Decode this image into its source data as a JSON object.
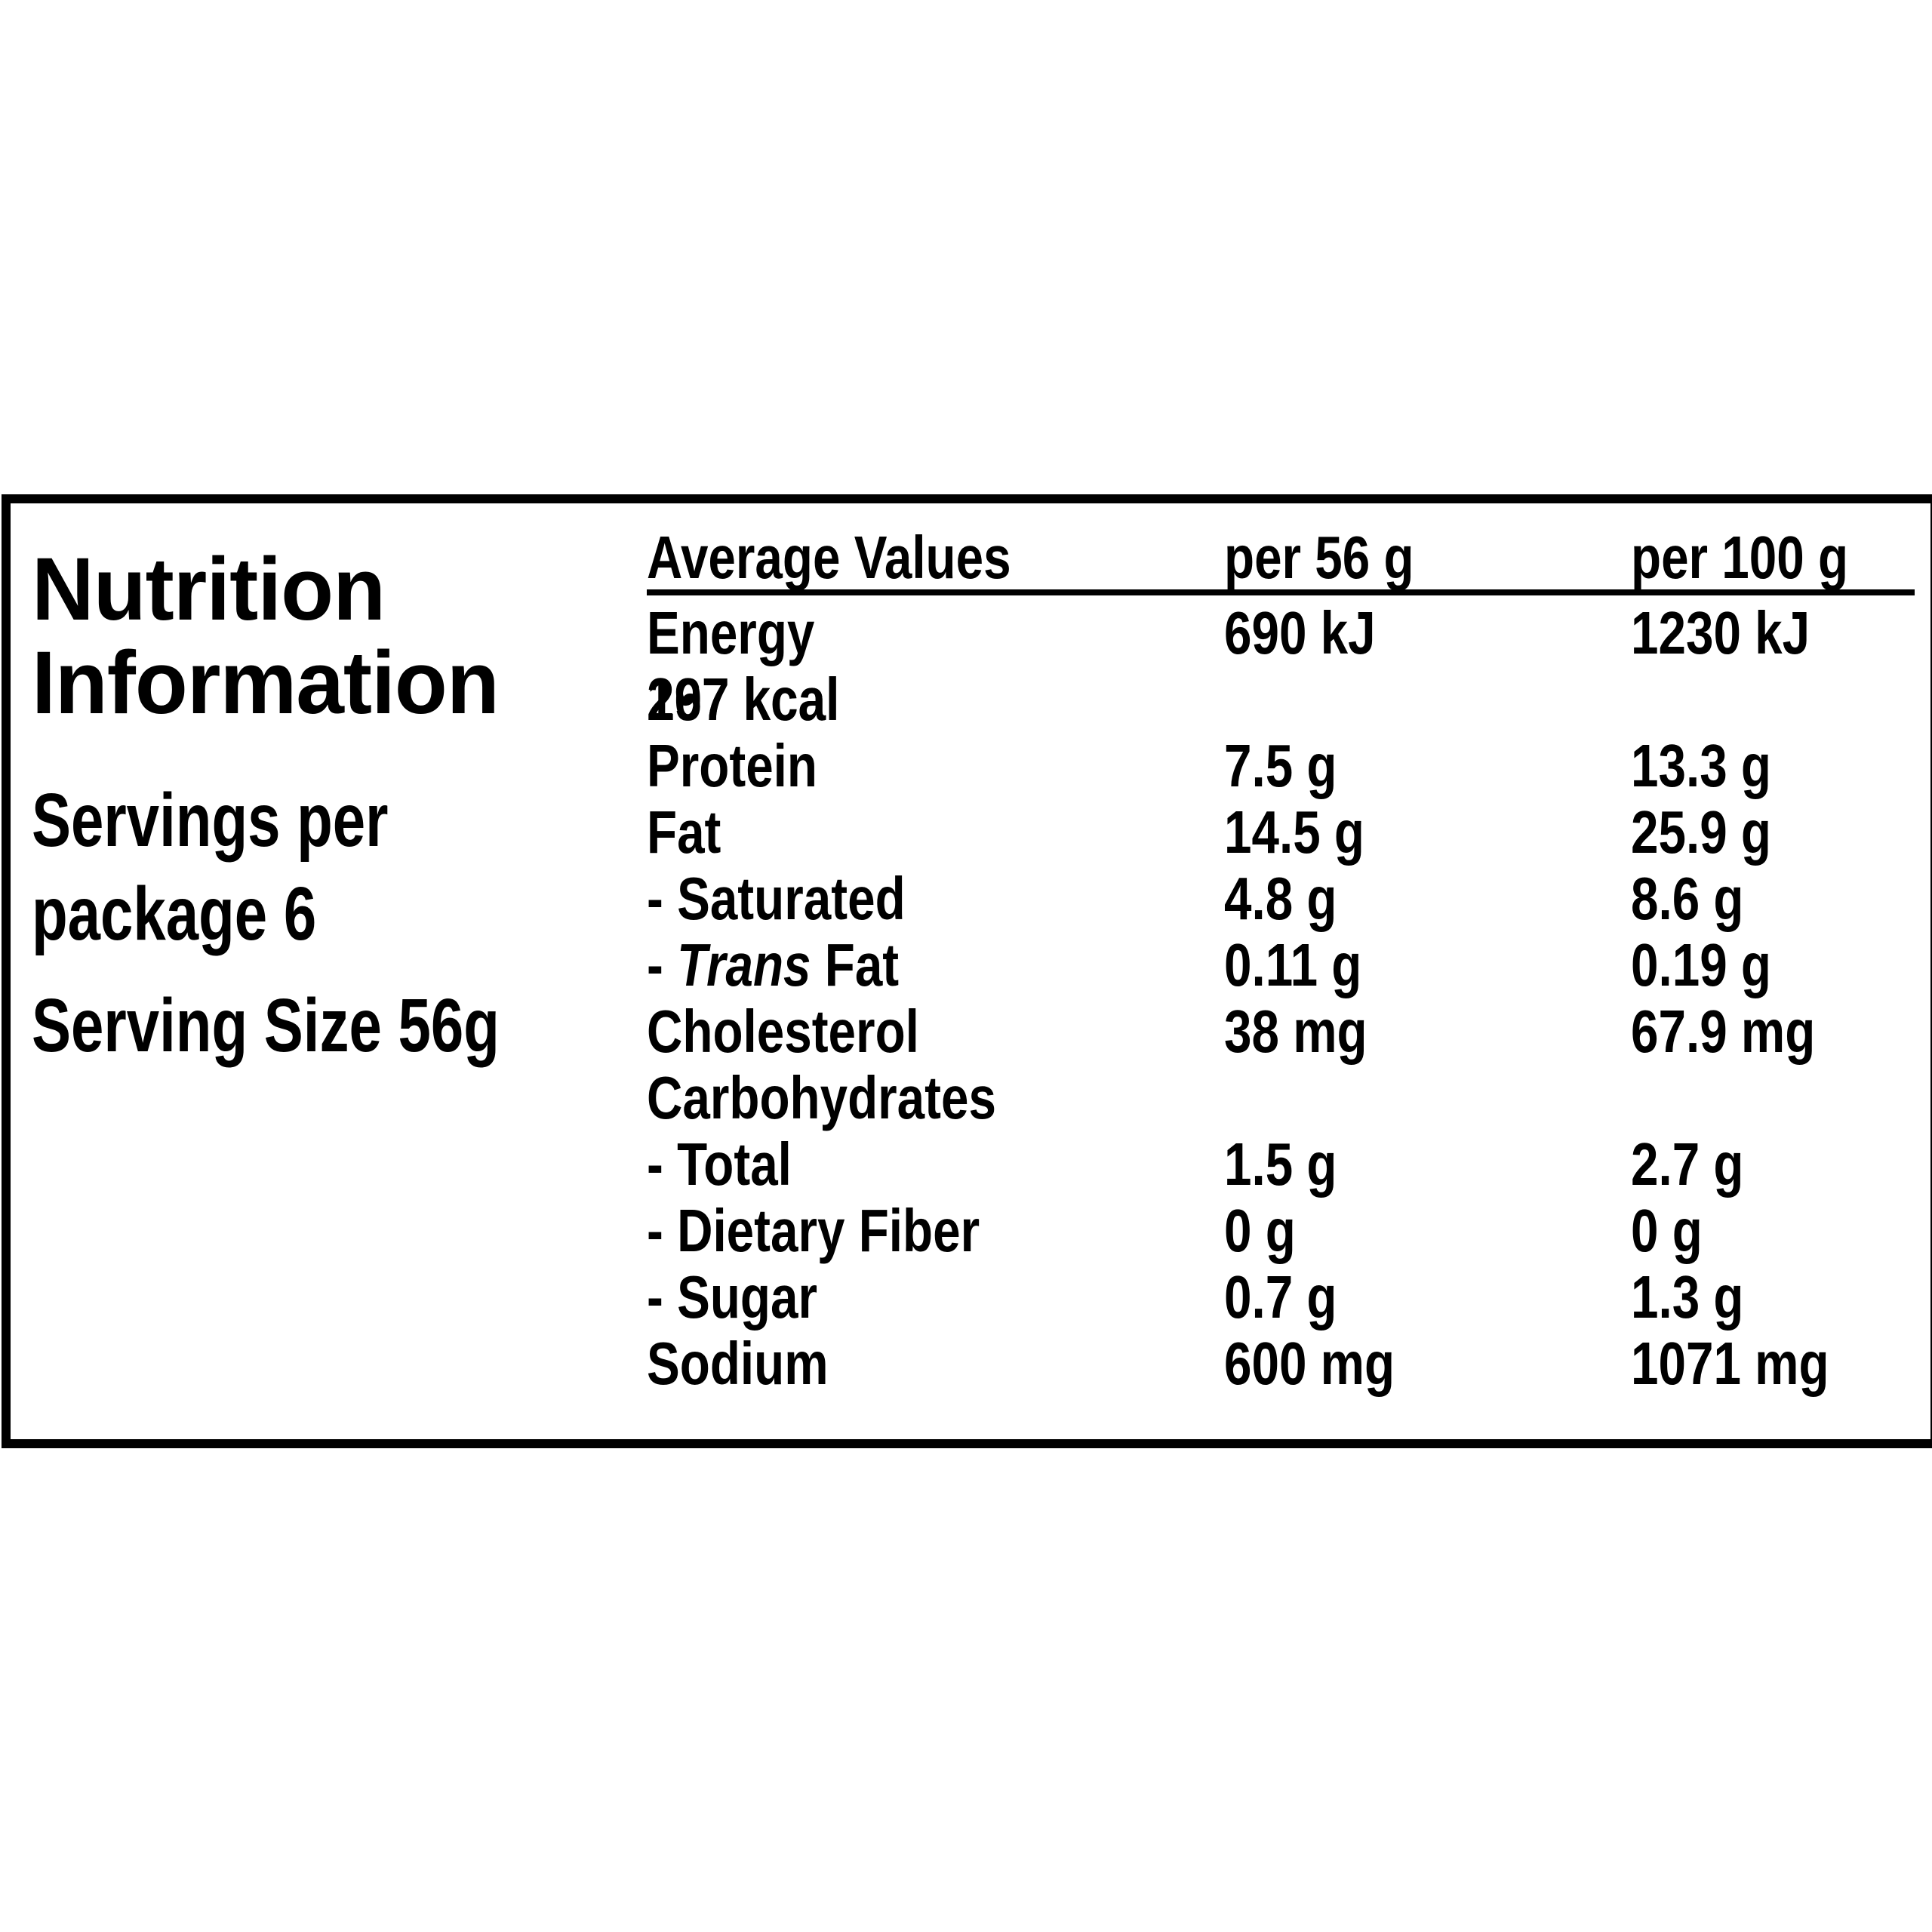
{
  "title_line1": "Nutrition",
  "title_line2": "Information",
  "servings_line1": "Servings per",
  "servings_line2": "package 6",
  "serving_size": "Serving Size 56g",
  "header": {
    "col1": "Average Values",
    "col2": "per 56 g",
    "col3": "per 100 g"
  },
  "energy": {
    "label": "Energy",
    "kj_56": "690 kJ",
    "kj_100": "1230 kJ",
    "kcal_56": "167 kcal",
    "kcal_100": "297 kcal"
  },
  "rows": [
    {
      "label": "Protein",
      "v56": "7.5 g",
      "v100": "13.3 g"
    },
    {
      "label": "Fat",
      "v56": "14.5 g",
      "v100": "25.9 g"
    },
    {
      "label": "- Saturated",
      "v56": "4.8 g",
      "v100": "8.6 g"
    },
    {
      "label_prefix": "- ",
      "label_italic": "Trans",
      "label_suffix": " Fat",
      "v56": "0.11 g",
      "v100": "0.19 g"
    },
    {
      "label": "Cholesterol",
      "v56": "38 mg",
      "v100": "67.9 mg"
    },
    {
      "label": "Carbohydrates",
      "v56": "",
      "v100": ""
    },
    {
      "label": "- Total",
      "v56": "1.5 g",
      "v100": "2.7 g"
    },
    {
      "label": "- Dietary Fiber",
      "v56": "0 g",
      "v100": "0 g"
    },
    {
      "label": "- Sugar",
      "v56": "0.7 g",
      "v100": "1.3 g"
    },
    {
      "label": "Sodium",
      "v56": "600 mg",
      "v100": "1071 mg"
    }
  ]
}
